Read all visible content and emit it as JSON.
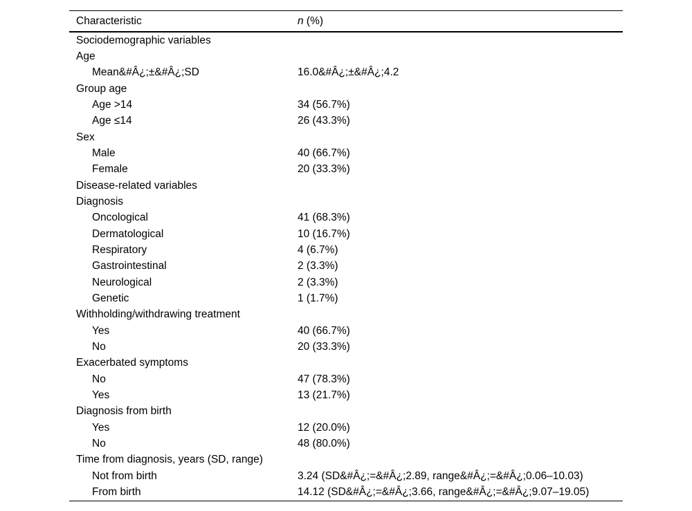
{
  "table": {
    "header": {
      "characteristic": "Characteristic",
      "n_symbol": "n",
      "n_rest": " (%)"
    },
    "rows": [
      {
        "label": "Sociodemographic variables",
        "value": "",
        "indent": 0
      },
      {
        "label": "Age",
        "value": "",
        "indent": 0
      },
      {
        "label": "Mean&#Â¿;±&#Â¿;SD",
        "value": "16.0&#Â¿;±&#Â¿;4.2",
        "indent": 1
      },
      {
        "label": "Group age",
        "value": "",
        "indent": 0
      },
      {
        "label": "Age >14",
        "value": "34 (56.7%)",
        "indent": 1
      },
      {
        "label": "Age ≤14",
        "value": "26 (43.3%)",
        "indent": 1
      },
      {
        "label": "Sex",
        "value": "",
        "indent": 0
      },
      {
        "label": "Male",
        "value": "40 (66.7%)",
        "indent": 1
      },
      {
        "label": "Female",
        "value": "20 (33.3%)",
        "indent": 1
      },
      {
        "label": "Disease-related variables",
        "value": "",
        "indent": 0
      },
      {
        "label": "Diagnosis",
        "value": "",
        "indent": 0
      },
      {
        "label": "Oncological",
        "value": "41 (68.3%)",
        "indent": 1
      },
      {
        "label": "Dermatological",
        "value": "10 (16.7%)",
        "indent": 1
      },
      {
        "label": "Respiratory",
        "value": "4 (6.7%)",
        "indent": 1
      },
      {
        "label": "Gastrointestinal",
        "value": "2 (3.3%)",
        "indent": 1
      },
      {
        "label": "Neurological",
        "value": "2 (3.3%)",
        "indent": 1
      },
      {
        "label": "Genetic",
        "value": "1 (1.7%)",
        "indent": 1
      },
      {
        "label": "Withholding/withdrawing treatment",
        "value": "",
        "indent": 0
      },
      {
        "label": "Yes",
        "value": "40 (66.7%)",
        "indent": 1
      },
      {
        "label": "No",
        "value": "20 (33.3%)",
        "indent": 1
      },
      {
        "label": "Exacerbated symptoms",
        "value": "",
        "indent": 0
      },
      {
        "label": "No",
        "value": "47 (78.3%)",
        "indent": 1
      },
      {
        "label": "Yes",
        "value": "13 (21.7%)",
        "indent": 1
      },
      {
        "label": "Diagnosis from birth",
        "value": "",
        "indent": 0
      },
      {
        "label": "Yes",
        "value": "12 (20.0%)",
        "indent": 1
      },
      {
        "label": "No",
        "value": "48 (80.0%)",
        "indent": 1
      },
      {
        "label": "Time from diagnosis, years (SD, range)",
        "value": "",
        "indent": 0
      },
      {
        "label": "Not from birth",
        "value": "3.24 (SD&#Â¿;=&#Â¿;2.89, range&#Â¿;=&#Â¿;0.06–10.03)",
        "indent": 1
      },
      {
        "label": "From birth",
        "value": "14.12 (SD&#Â¿;=&#Â¿;3.66, range&#Â¿;=&#Â¿;9.07–19.05)",
        "indent": 1
      }
    ],
    "style": {
      "text_color": "#000000",
      "background_color": "#ffffff",
      "rule_color": "#000000"
    }
  }
}
